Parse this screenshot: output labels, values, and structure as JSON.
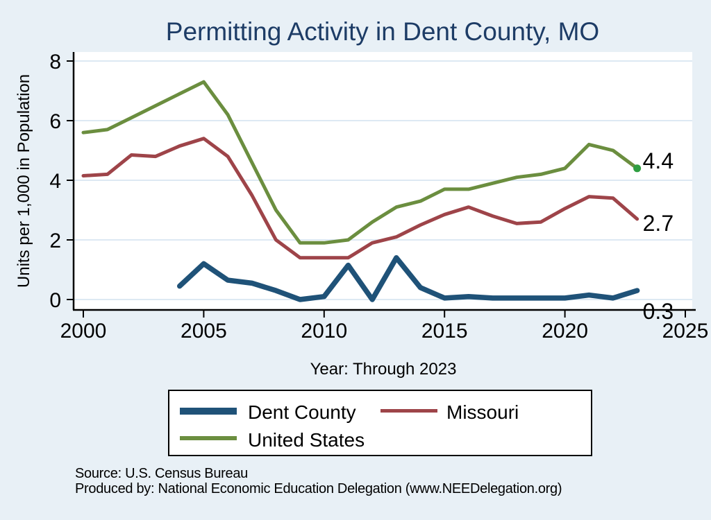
{
  "title": "Permitting Activity in Dent County, MO",
  "colors": {
    "background": "#e8f0f6",
    "plot_background": "#ffffff",
    "gridline": "#dde9f3",
    "axis": "#000000",
    "title": "#1d3c66",
    "dent_county": "#1f5278",
    "missouri": "#9e4449",
    "united_states": "#6b8e3f",
    "end_marker": "#2f9e41"
  },
  "footer": {
    "line1": "Source: U.S. Census Bureau",
    "line2": "Produced by: National Economic Education Delegation (www.NEEDelegation.org)"
  },
  "chart_data": {
    "type": "line",
    "title": "Permitting Activity in Dent County, MO",
    "xlabel": "Year: Through 2023",
    "ylabel": "Units per 1,000 in Population",
    "xlim": [
      2000,
      2025
    ],
    "ylim": [
      0,
      8
    ],
    "x_ticks": [
      2000,
      2005,
      2010,
      2015,
      2020,
      2025
    ],
    "y_ticks": [
      0,
      2,
      4,
      6,
      8
    ],
    "grid": true,
    "legend_position": "bottom",
    "series": [
      {
        "name": "Dent County",
        "color": "#1f5278",
        "line_width": 7.5,
        "end_label": "0.3",
        "x": [
          2004,
          2005,
          2006,
          2007,
          2008,
          2009,
          2010,
          2011,
          2012,
          2013,
          2014,
          2015,
          2016,
          2017,
          2018,
          2019,
          2020,
          2021,
          2022,
          2023
        ],
        "values": [
          0.45,
          1.2,
          0.65,
          0.55,
          0.3,
          0.0,
          0.1,
          1.15,
          0.0,
          1.4,
          0.4,
          0.05,
          0.1,
          0.05,
          0.05,
          0.05,
          0.05,
          0.15,
          0.05,
          0.3
        ]
      },
      {
        "name": "Missouri",
        "color": "#9e4449",
        "line_width": 5,
        "end_label": "2.7",
        "x": [
          2000,
          2001,
          2002,
          2003,
          2004,
          2005,
          2006,
          2007,
          2008,
          2009,
          2010,
          2011,
          2012,
          2013,
          2014,
          2015,
          2016,
          2017,
          2018,
          2019,
          2020,
          2021,
          2022,
          2023
        ],
        "values": [
          4.15,
          4.2,
          4.85,
          4.8,
          5.15,
          5.4,
          4.8,
          3.5,
          2.0,
          1.4,
          1.4,
          1.4,
          1.9,
          2.1,
          2.5,
          2.85,
          3.1,
          2.8,
          2.55,
          2.6,
          3.05,
          3.45,
          3.4,
          2.7
        ]
      },
      {
        "name": "United States",
        "color": "#6b8e3f",
        "line_width": 5,
        "end_label": "4.4",
        "end_dot": "#2f9e41",
        "x": [
          2000,
          2001,
          2002,
          2003,
          2004,
          2005,
          2006,
          2007,
          2008,
          2009,
          2010,
          2011,
          2012,
          2013,
          2014,
          2015,
          2016,
          2017,
          2018,
          2019,
          2020,
          2021,
          2022,
          2023
        ],
        "values": [
          5.6,
          5.7,
          6.1,
          6.5,
          6.9,
          7.3,
          6.2,
          4.6,
          3.0,
          1.9,
          1.9,
          2.0,
          2.6,
          3.1,
          3.3,
          3.7,
          3.7,
          3.9,
          4.1,
          4.2,
          4.4,
          5.2,
          5.0,
          4.4
        ]
      }
    ]
  },
  "legend": {
    "items": [
      {
        "label": "Dent County"
      },
      {
        "label": "Missouri"
      },
      {
        "label": "United States"
      }
    ]
  }
}
